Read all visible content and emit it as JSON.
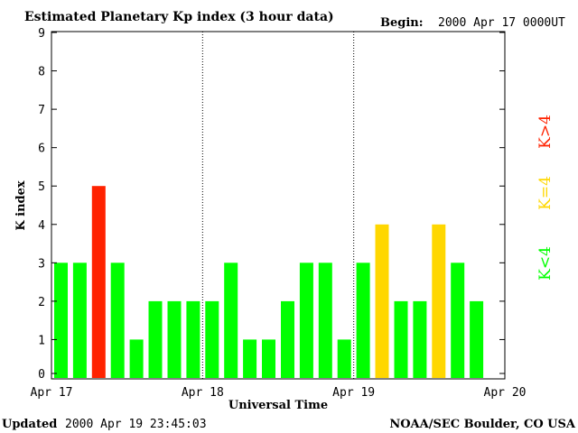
{
  "chart_data": {
    "type": "bar",
    "title": "Estimated Planetary Kp index (3 hour data)",
    "begin_label": "Begin:",
    "begin_value": "2000 Apr 17 0000UT",
    "xlabel": "Universal Time",
    "ylabel": "K index",
    "ylim": [
      0,
      9
    ],
    "yticks": [
      "0",
      "1",
      "2",
      "3",
      "4",
      "5",
      "6",
      "7",
      "8",
      "9"
    ],
    "x_tick_labels": [
      "Apr 17",
      "Apr 18",
      "Apr 19",
      "Apr 20"
    ],
    "grid": false,
    "day_separators": "dotted vertical lines at day boundaries",
    "values": [
      3,
      3,
      5,
      3,
      1,
      2,
      2,
      2,
      2,
      3,
      1,
      1,
      2,
      3,
      3,
      1,
      3,
      4,
      2,
      2,
      4,
      3,
      2
    ],
    "color_rules": {
      "below_4": "#00ff00",
      "equal_4": "#ffd700",
      "above_4": "#ff2200"
    },
    "legend": [
      "K<4",
      "K=4",
      "K>4"
    ],
    "legend_placement": "right, vertical"
  },
  "footer": {
    "updated_label": "Updated",
    "updated_value": "2000 Apr 19 23:45:03",
    "source": "NOAA/SEC Boulder, CO USA"
  }
}
